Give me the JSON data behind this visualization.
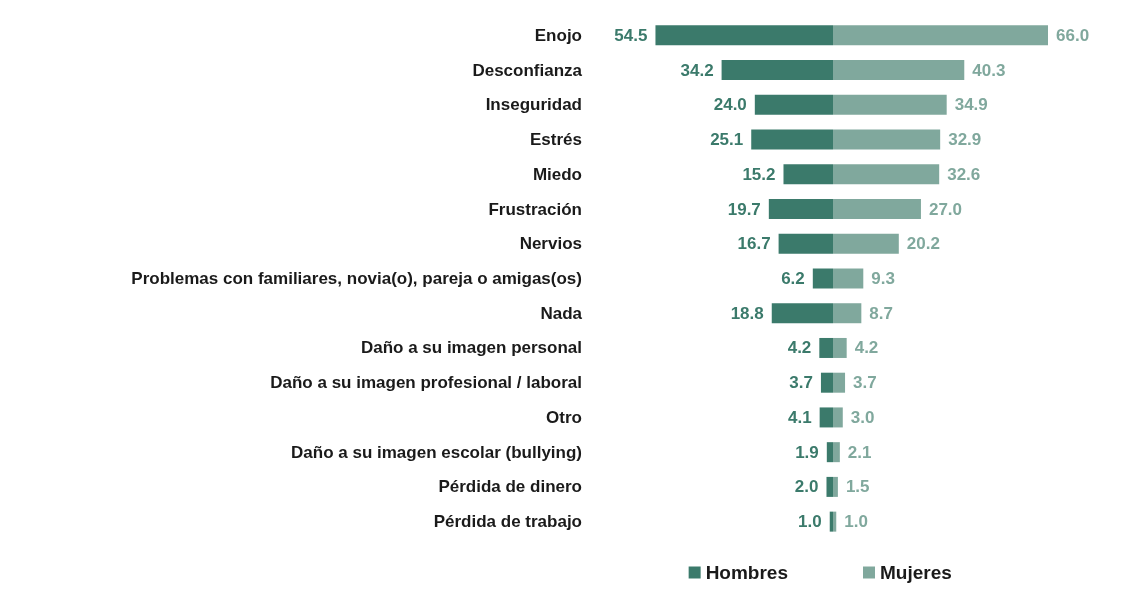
{
  "chart_data": [
    {
      "type": "bar",
      "orientation": "horizontal",
      "categories": [
        "Enojo",
        "Desconfianza",
        "Inseguridad",
        "Estrés",
        "Miedo",
        "Frustración",
        "Nervios",
        "Problemas con familiares, novia(o), pareja o amigas(os)",
        "Nada",
        "Daño a su imagen personal",
        "Daño a su imagen profesional / laboral",
        "Otro",
        "Daño a su imagen escolar (bullying)",
        "Pérdida de dinero",
        "Pérdida de trabajo"
      ],
      "series": [
        {
          "name": "Hombres",
          "color": "#3b7a6b",
          "values": [
            54.5,
            34.2,
            24.0,
            25.1,
            15.2,
            19.7,
            16.7,
            6.2,
            18.8,
            4.2,
            3.7,
            4.1,
            1.9,
            2.0,
            1.0
          ],
          "value_labels": [
            "54.5",
            "34.2",
            "24.0",
            "25.1",
            "15.2",
            "19.7",
            "16.7",
            "6.2",
            "18.8",
            "4.2",
            "3.7",
            "4.1",
            "1.9",
            "2.0",
            "1.0"
          ]
        }
      ],
      "legend": "bottom right"
    },
    {
      "type": "bar",
      "orientation": "horizontal",
      "categories": [
        null,
        null,
        null,
        null,
        null,
        null,
        null,
        null,
        null,
        null,
        null,
        null,
        null,
        null,
        null
      ],
      "series": [
        {
          "name": "Mujeres",
          "color": "#80a89d",
          "values": [
            66.0,
            40.3,
            34.9,
            32.9,
            32.6,
            27.0,
            20.2,
            9.3,
            8.7,
            4.2,
            3.7,
            3.0,
            2.1,
            1.5,
            1.0
          ],
          "value_labels": [
            "66.0",
            "40.3",
            "34.9",
            "32.9",
            "32.6",
            "27.0",
            "20.2",
            "9.3",
            "8.7",
            "4.2",
            "3.7",
            "3.0",
            "2.1",
            "1.5",
            "1.0"
          ]
        }
      ],
      "legend": "bottom left",
      "tick_labels": false
    }
  ]
}
